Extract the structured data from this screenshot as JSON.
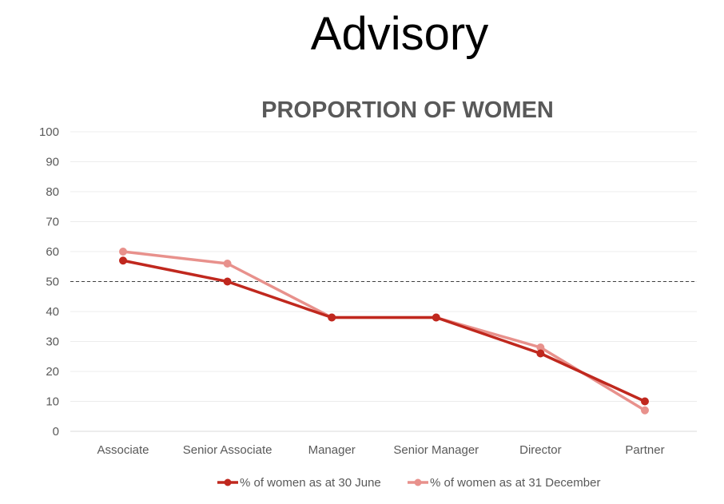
{
  "page": {
    "title": "Advisory"
  },
  "chart_data": {
    "type": "line",
    "title": "PROPORTION OF WOMEN",
    "xlabel": "",
    "ylabel": "",
    "categories": [
      "Associate",
      "Senior Associate",
      "Manager",
      "Senior Manager",
      "Director",
      "Partner"
    ],
    "ylim": [
      0,
      100
    ],
    "yticks": [
      0,
      10,
      20,
      30,
      40,
      50,
      60,
      70,
      80,
      90,
      100
    ],
    "grid": true,
    "reference_line": {
      "value": 50,
      "style": "dashed",
      "color": "#404040"
    },
    "legend_position": "bottom",
    "series": [
      {
        "name": "% of women as at 30 June",
        "color": "#C0281E",
        "values": [
          57,
          50,
          38,
          38,
          26,
          10
        ]
      },
      {
        "name": "% of women as at 31 December",
        "color": "#E8918C",
        "values": [
          60,
          56,
          38,
          38,
          28,
          7
        ]
      }
    ]
  }
}
